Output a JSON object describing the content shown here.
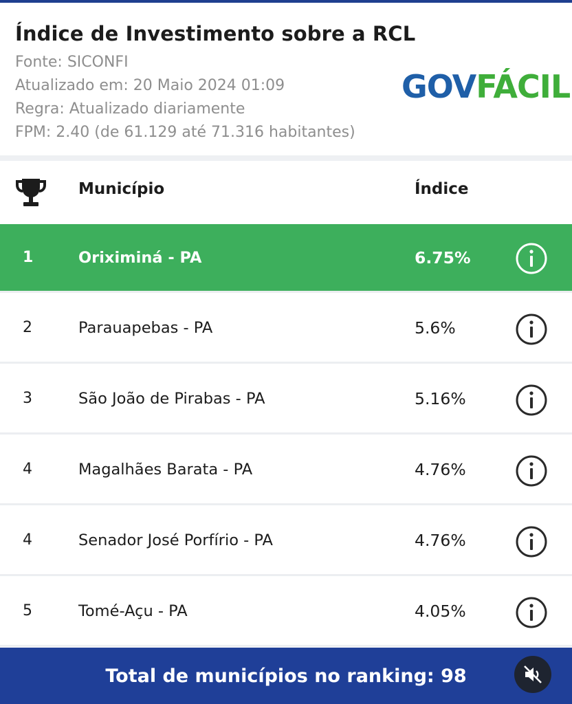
{
  "header": {
    "title": "Índice de Investimento sobre a RCL",
    "fonte": "Fonte: SICONFI",
    "atualizado": "Atualizado em: 20 Maio 2024 01:09",
    "regra": "Regra: Atualizado diariamente",
    "fpm": "FPM: 2.40 (de 61.129 até 71.316 habitantes)"
  },
  "logo": {
    "part1": "GOV",
    "part2": "FÁCIL",
    "color1": "#1f5fa8",
    "color2": "#3fae3a"
  },
  "table": {
    "columns": {
      "icon": "trophy-icon",
      "municipio": "Município",
      "indice": "Índice"
    },
    "rows": [
      {
        "rank": "1",
        "name": "Oriximiná - PA",
        "value": "6.75%"
      },
      {
        "rank": "2",
        "name": "Parauapebas - PA",
        "value": "5.6%"
      },
      {
        "rank": "3",
        "name": "São João de Pirabas - PA",
        "value": "5.16%"
      },
      {
        "rank": "4",
        "name": "Magalhães Barata - PA",
        "value": "4.76%"
      },
      {
        "rank": "4",
        "name": "Senador José Porfírio - PA",
        "value": "4.76%"
      },
      {
        "rank": "5",
        "name": "Tomé-Açu - PA",
        "value": "4.05%"
      }
    ],
    "highlight_color": "#3daf5c"
  },
  "footer": {
    "text": "Total de municípios no ranking: 98",
    "color": "#1f3f98",
    "mute_icon": "mute-icon"
  }
}
